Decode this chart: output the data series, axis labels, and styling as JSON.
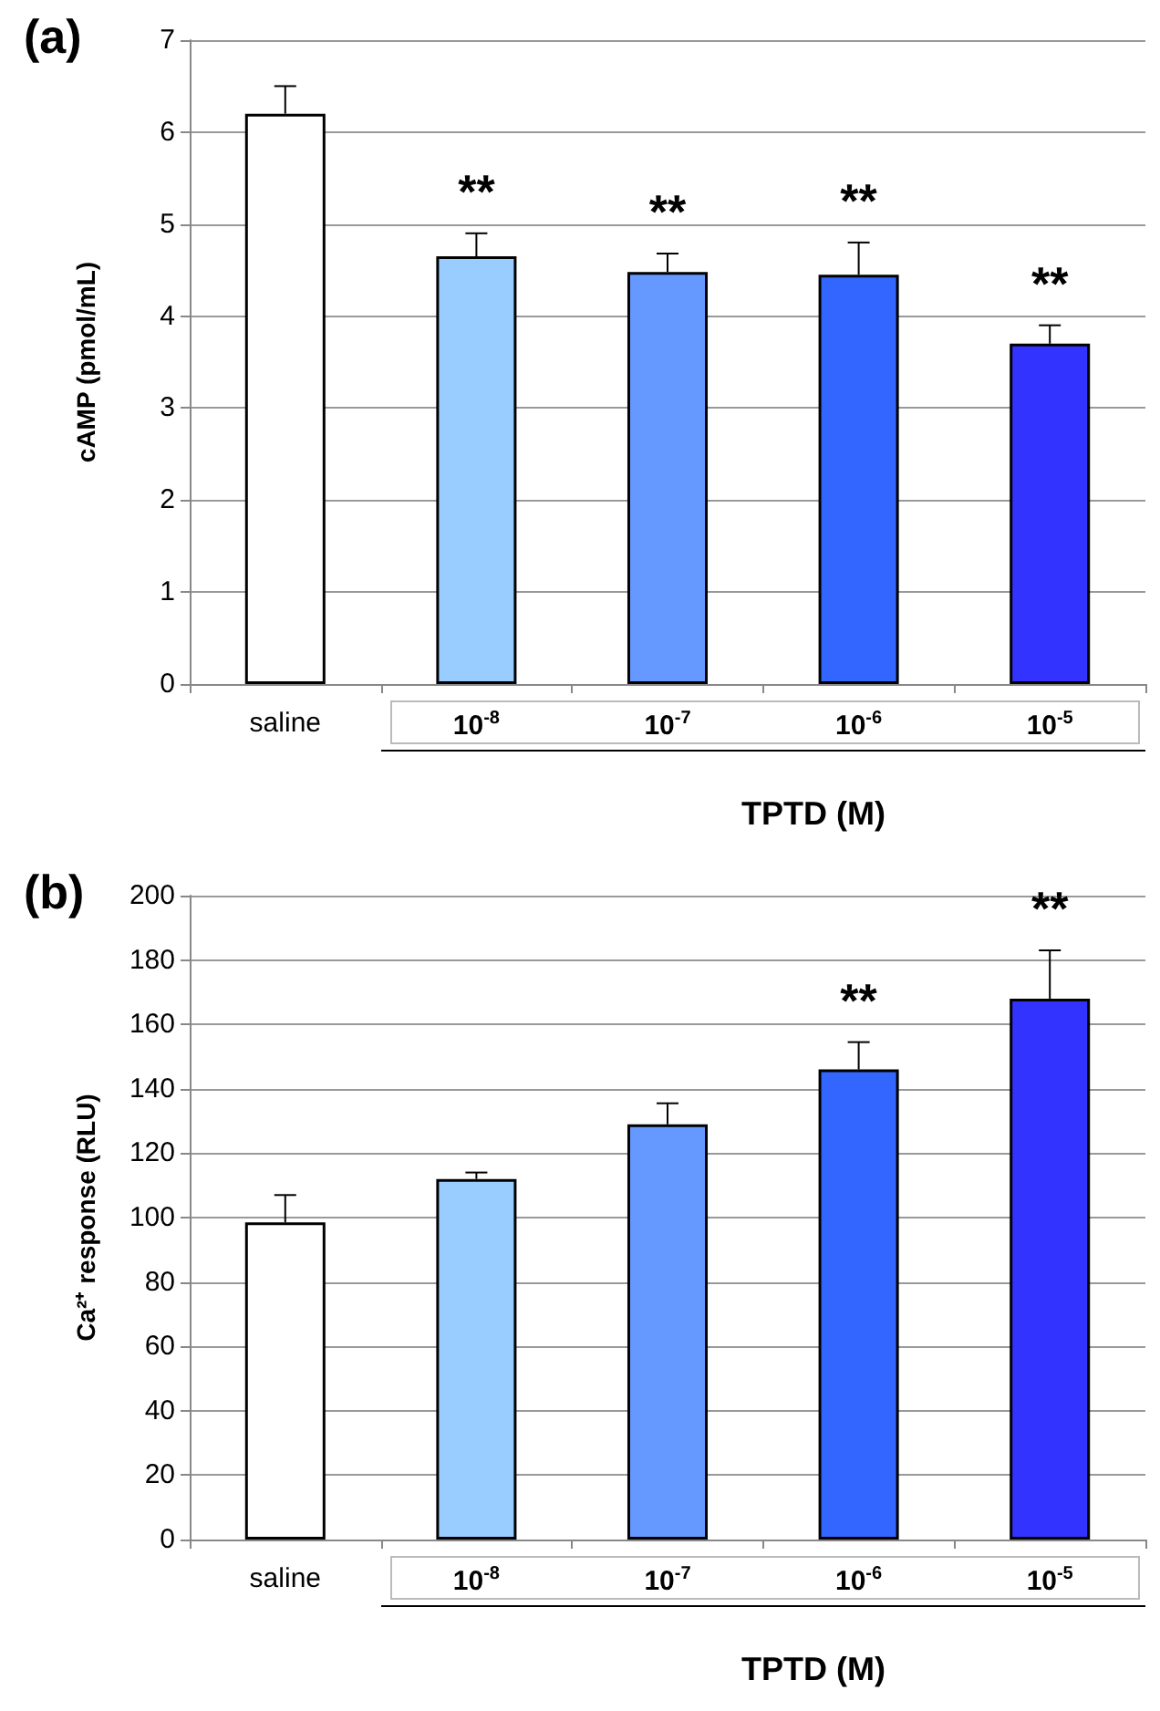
{
  "chart_data": [
    {
      "type": "bar",
      "title": "(a)",
      "xlabel": "TPTD (M)",
      "ylabel": "cAMP (pmol/mL)",
      "categories": [
        "saline",
        "10$^{-8}$",
        "10$^{-7}$",
        "10$^{-6}$",
        "10$^{-5}$"
      ],
      "values": [
        6.2,
        4.65,
        4.48,
        4.45,
        3.7
      ],
      "colors": [
        "#ffffff",
        "#99ccff",
        "#6699ff",
        "#3366ff",
        "#3333ff"
      ],
      "errors": [
        [
          6.2,
          6.5
        ],
        [
          4.65,
          4.9
        ],
        [
          4.48,
          4.68
        ],
        [
          4.45,
          4.8
        ],
        [
          3.7,
          3.9
        ]
      ],
      "annotations": [
        {
          "text": "**",
          "x": "10$^{-8}$",
          "y": 4.9
        },
        {
          "text": "**",
          "x": "10$^{-7}$",
          "y": 4.68
        },
        {
          "text": "**",
          "x": "10$^{-6}$",
          "y": 4.8
        },
        {
          "text": "**",
          "x": "10$^{-5}$",
          "y": 3.9
        }
      ],
      "ylim": [
        0,
        7
      ],
      "yticks": [
        0,
        1,
        2,
        3,
        4,
        5,
        6,
        7
      ],
      "grid": "y"
    },
    {
      "type": "bar",
      "title": "(b)",
      "xlabel": "TPTD (M)",
      "ylabel": "Ca²⁺ response (RLU)",
      "categories": [
        "saline",
        "10$^{-8}$",
        "10$^{-7}$",
        "10$^{-6}$",
        "10$^{-5}$"
      ],
      "values": [
        98.5,
        112,
        129,
        146,
        168
      ],
      "colors": [
        "#ffffff",
        "#99ccff",
        "#6699ff",
        "#3366ff",
        "#3333ff"
      ],
      "errors": [
        [
          98.5,
          107
        ],
        [
          112,
          114
        ],
        [
          129,
          135.5
        ],
        [
          146,
          154.5
        ],
        [
          168,
          183
        ]
      ],
      "annotations": [
        {
          "text": "**",
          "x": "10$^{-6}$",
          "y": 154.5
        },
        {
          "text": "**",
          "x": "10$^{-5}$",
          "y": 183
        }
      ],
      "ylim": [
        0,
        200
      ],
      "yticks": [
        0,
        20,
        40,
        60,
        80,
        100,
        120,
        140,
        160,
        180,
        200
      ],
      "grid": "y"
    }
  ]
}
